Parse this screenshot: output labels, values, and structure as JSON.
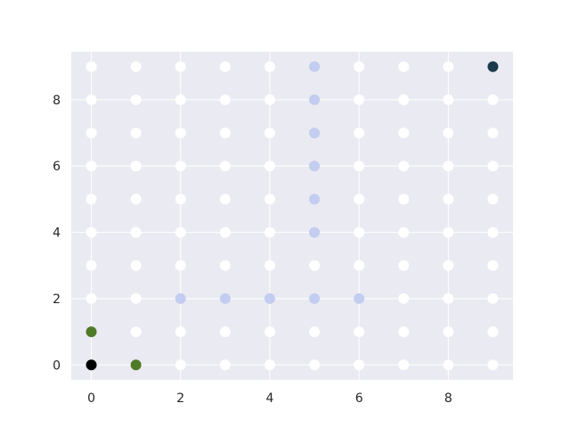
{
  "chart_data": {
    "type": "scatter",
    "title": "",
    "xlabel": "",
    "ylabel": "",
    "xlim": [
      -0.45,
      9.45
    ],
    "ylim": [
      -0.45,
      9.45
    ],
    "xticks": [
      0,
      2,
      4,
      6,
      8
    ],
    "yticks": [
      0,
      2,
      4,
      6,
      8
    ],
    "grid": true,
    "legend": "none",
    "grid_points": {
      "x_values": [
        0,
        1,
        2,
        3,
        4,
        5,
        6,
        7,
        8,
        9
      ],
      "y_values": [
        0,
        1,
        2,
        3,
        4,
        5,
        6,
        7,
        8,
        9
      ],
      "color": "#ffffff"
    },
    "series": [
      {
        "color": "#000000",
        "points": [
          [
            0,
            0
          ]
        ]
      },
      {
        "color": "#4f7a28",
        "points": [
          [
            0,
            1
          ],
          [
            1,
            0
          ]
        ]
      },
      {
        "color": "#c3cdf0",
        "points": [
          [
            2,
            2
          ],
          [
            3,
            2
          ],
          [
            4,
            2
          ],
          [
            5,
            2
          ],
          [
            6,
            2
          ],
          [
            5,
            4
          ],
          [
            5,
            5
          ],
          [
            5,
            6
          ],
          [
            5,
            7
          ],
          [
            5,
            8
          ],
          [
            5,
            9
          ]
        ]
      },
      {
        "color": "#1b3a4b",
        "points": [
          [
            9,
            9
          ]
        ]
      }
    ],
    "colors": {
      "background": "#eaeaf2",
      "grid": "#ffffff",
      "tick_text": "#262626"
    }
  }
}
